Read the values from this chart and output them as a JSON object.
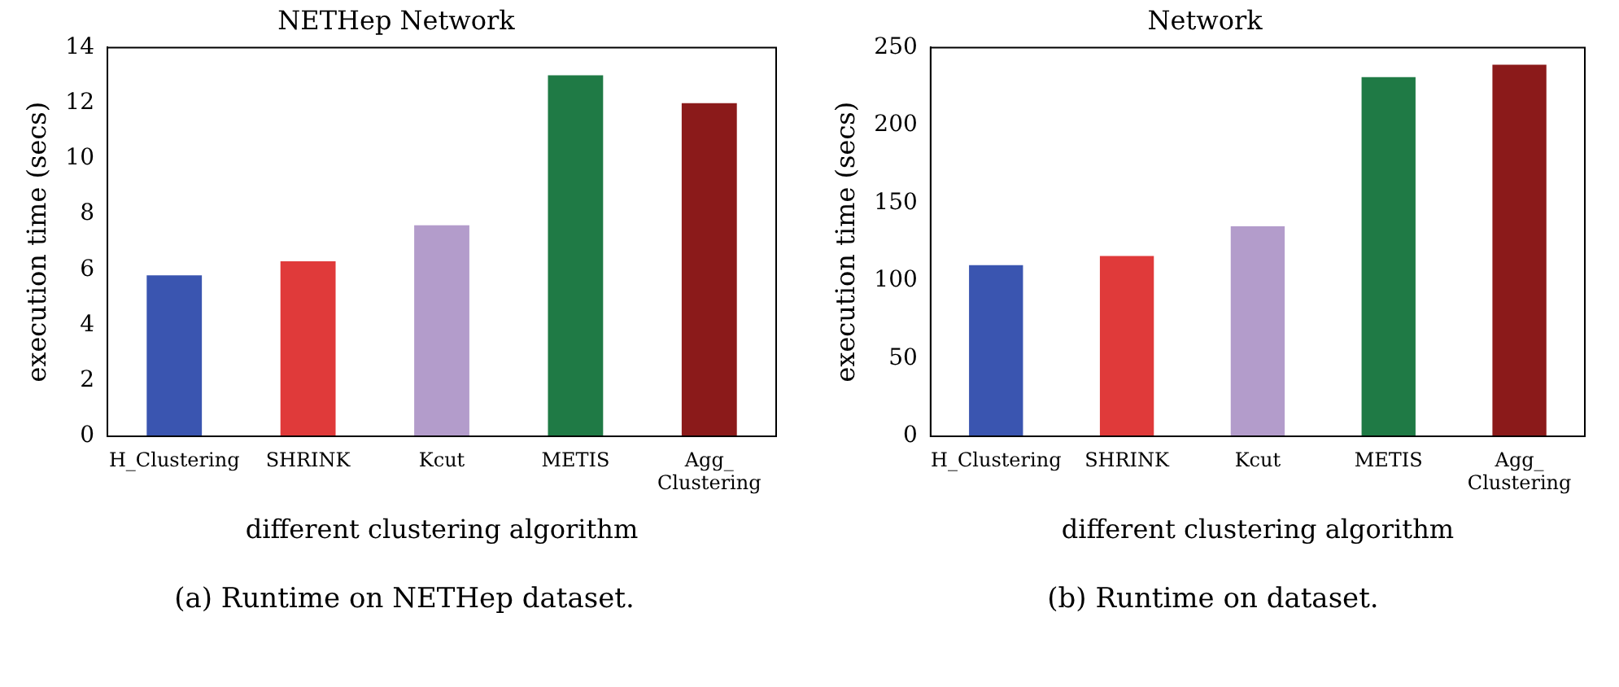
{
  "chart_data": [
    {
      "type": "bar",
      "title": "NETHep Network",
      "xlabel": "different clustering algorithm",
      "ylabel": "execution time (secs)",
      "categories": [
        "H_Clustering",
        "SHRINK",
        "Kcut",
        "METIS",
        "Agg_\nClustering"
      ],
      "values": [
        5.8,
        6.3,
        7.6,
        13.0,
        12.0
      ],
      "colors": [
        "#3a55b0",
        "#e03a3a",
        "#b39ccb",
        "#1f7a45",
        "#8b1a1a"
      ],
      "ylim": [
        0,
        14
      ],
      "yticks": [
        0,
        2,
        4,
        6,
        8,
        10,
        12,
        14
      ],
      "grid": false,
      "legend": false,
      "annotations": [
        "(a) Runtime on NETHep dataset."
      ]
    },
    {
      "type": "bar",
      "title": "Network",
      "xlabel": "different clustering algorithm",
      "ylabel": "execution time (secs)",
      "categories": [
        "H_Clustering",
        "SHRINK",
        "Kcut",
        "METIS",
        "Agg_\nClustering"
      ],
      "values": [
        110,
        116,
        135,
        231,
        239
      ],
      "colors": [
        "#3a55b0",
        "#e03a3a",
        "#b39ccb",
        "#1f7a45",
        "#8b1a1a"
      ],
      "ylim": [
        0,
        250
      ],
      "yticks": [
        0,
        50,
        100,
        150,
        200,
        250
      ],
      "grid": false,
      "legend": false,
      "annotations": [
        "(b) Runtime on dataset."
      ]
    }
  ]
}
